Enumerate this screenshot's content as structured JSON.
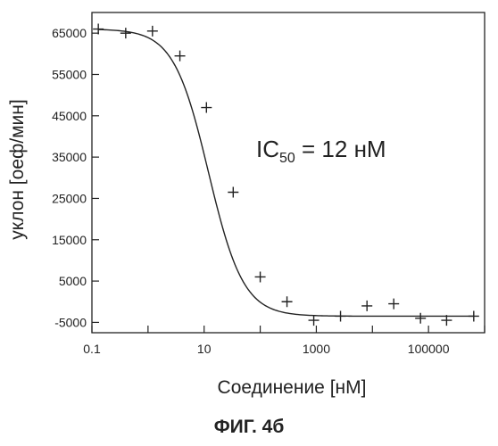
{
  "figure_caption": "ФИГ. 4б",
  "chart_data": {
    "type": "scatter",
    "xlabel": "Соединение [нМ]",
    "ylabel": "уклон [оеф/мин]",
    "x_scale": "log",
    "xlim": [
      0.1,
      1000000
    ],
    "ylim": [
      -7500,
      70000
    ],
    "x_ticks": [
      0.1,
      10,
      1000,
      100000
    ],
    "x_tick_labels": [
      "0.1",
      "10",
      "1000",
      "100000"
    ],
    "y_ticks": [
      65000,
      55000,
      45000,
      35000,
      25000,
      15000,
      5000,
      -5000
    ],
    "y_tick_labels": [
      "65000",
      "55000",
      "45000",
      "35000",
      "25000",
      "15000",
      "5000",
      "-5000"
    ],
    "annotation": {
      "main": "IC",
      "sub": "50",
      "rest": " = 12 нМ"
    },
    "series": [
      {
        "marker": "+",
        "points": [
          {
            "x": 0.13,
            "y": 66000
          },
          {
            "x": 0.4,
            "y": 65000
          },
          {
            "x": 1.2,
            "y": 65500
          },
          {
            "x": 3.7,
            "y": 59500
          },
          {
            "x": 11,
            "y": 47000
          },
          {
            "x": 33,
            "y": 26500
          },
          {
            "x": 100,
            "y": 6000
          },
          {
            "x": 300,
            "y": 0
          },
          {
            "x": 900,
            "y": -4500
          },
          {
            "x": 2700,
            "y": -3500
          },
          {
            "x": 8000,
            "y": -1000
          },
          {
            "x": 24000,
            "y": -500
          },
          {
            "x": 72000,
            "y": -4000
          },
          {
            "x": 210000,
            "y": -4500
          },
          {
            "x": 640000,
            "y": -3500
          }
        ]
      }
    ],
    "fit": {
      "type": "4PL",
      "top": 66000,
      "bottom": -3500,
      "ic50": 12,
      "hill": 1.4
    },
    "grid": false,
    "legend": false
  }
}
